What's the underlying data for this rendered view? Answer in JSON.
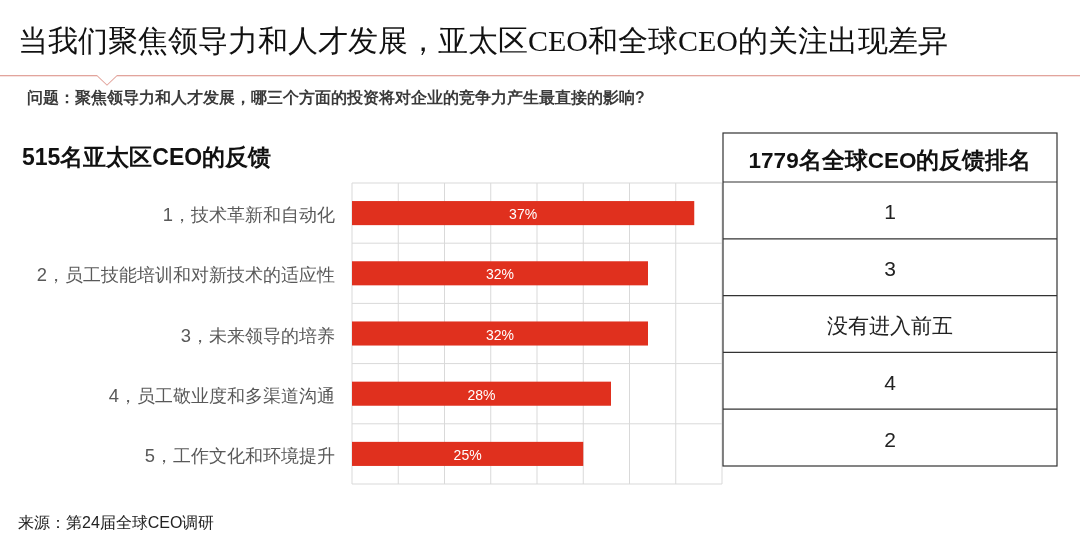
{
  "chart_data": [
    {
      "type": "other",
      "title": "当我们聚焦领导力和人才发展，亚太区CEO和全球CEO的关注出现差异",
      "subtitle": "问题：聚焦领导力和人才发展，哪三个方面的投资将对企业的竞争力产生最直接的影响?"
    },
    {
      "type": "bar",
      "orientation": "horizontal",
      "title": "515名亚太区CEO的反馈",
      "categories": [
        "1，技术革新和自动化",
        "2，员工技能培训和对新技术的适应性",
        "3，未来领导的培养",
        "4，员工敬业度和多渠道沟通",
        "5，工作文化和环境提升"
      ],
      "values": [
        37,
        32,
        32,
        28,
        25
      ],
      "value_labels": [
        "37%",
        "32%",
        "32%",
        "28%",
        "25%"
      ],
      "color": "#e0301e",
      "xlim": [
        0,
        40
      ],
      "xticks": [
        {
          "value": 0,
          "label": null
        },
        {
          "value": 5,
          "label": null
        },
        {
          "value": 10,
          "label": null
        },
        {
          "value": 15,
          "label": null
        },
        {
          "value": 20,
          "label": null
        },
        {
          "value": 25,
          "label": null
        },
        {
          "value": 30,
          "label": null
        },
        {
          "value": 35,
          "label": null
        },
        {
          "value": 40,
          "label": null
        }
      ],
      "grid": true,
      "tick_labels": "y",
      "annotations": [
        "来源：第24届全球CEO调研"
      ]
    },
    {
      "type": "other",
      "title": "1779名全球CEO的反馈排名",
      "annotations": [
        "1",
        "3",
        "没有进入前五",
        "4",
        "2"
      ]
    }
  ]
}
